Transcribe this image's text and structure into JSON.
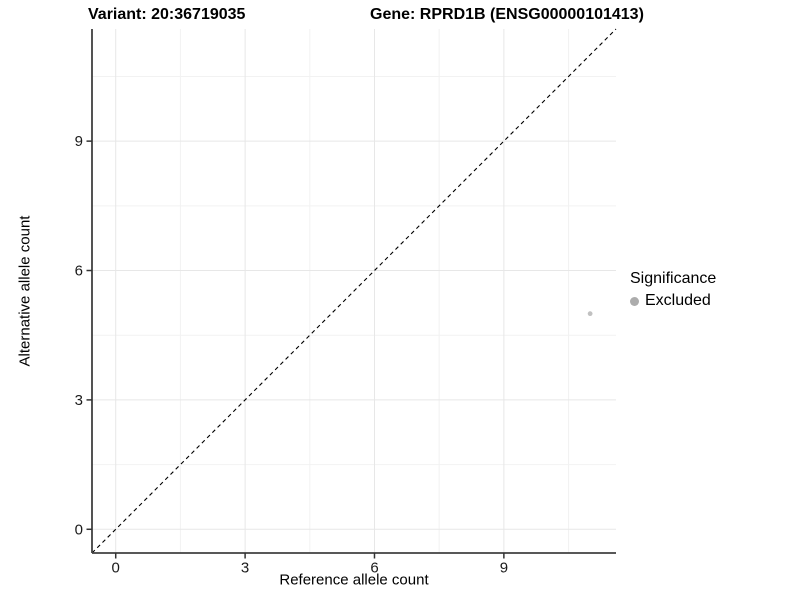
{
  "chart_data": {
    "type": "scatter",
    "title_left": "Variant: 20:36719035",
    "title_right": "Gene: RPRD1B (ENSG00000101413)",
    "xlabel": "Reference allele count",
    "ylabel": "Alternative allele count",
    "xlim": [
      -0.55,
      11.6
    ],
    "ylim": [
      -0.55,
      11.6
    ],
    "x_ticks": [
      0,
      3,
      6,
      9
    ],
    "y_ticks": [
      0,
      3,
      6,
      9
    ],
    "x_minor_ticks": [
      1.5,
      4.5,
      7.5,
      10.5
    ],
    "y_minor_ticks": [
      1.5,
      4.5,
      7.5,
      10.5
    ],
    "grid": true,
    "series": [
      {
        "name": "Excluded",
        "points": [
          {
            "x": 11,
            "y": 5
          }
        ],
        "color": "#c1c1c1",
        "point_radius": 2.4
      }
    ],
    "reference_line": {
      "type": "identity",
      "style": "dashed",
      "color": "#000000"
    },
    "legend": {
      "title": "Significance",
      "position": "right",
      "entries": [
        {
          "label": "Excluded",
          "color": "#acacac"
        }
      ]
    },
    "style": {
      "panel_background": "#ffffff",
      "grid_major_color": "#e7e7e7",
      "grid_minor_color": "#f2f2f2",
      "axis_line_color": "#404040",
      "tick_mark_color": "#333333",
      "tick_label_color": "#1a1a1a",
      "tick_label_size": 15
    }
  }
}
